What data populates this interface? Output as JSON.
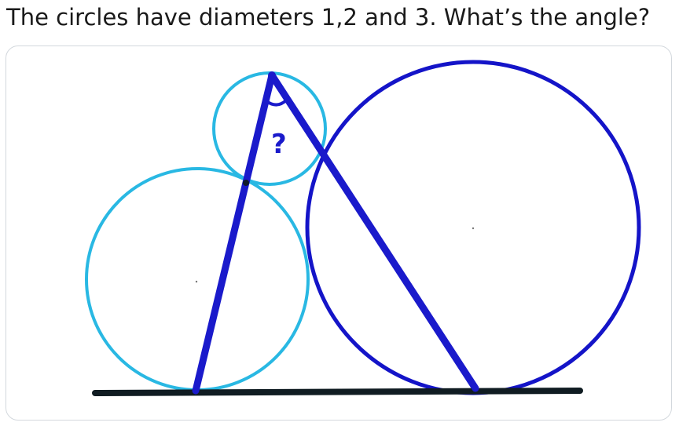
{
  "question": {
    "text": "The circles have diameters 1,2 and 3. What’s the angle?"
  },
  "figure": {
    "angle_label": "?",
    "colors": {
      "small_circles": "#29b8e3",
      "large_circle": "#1414c8",
      "lines": "#1a1acb",
      "ground": "#101c22",
      "label": "#1a1acb"
    }
  }
}
